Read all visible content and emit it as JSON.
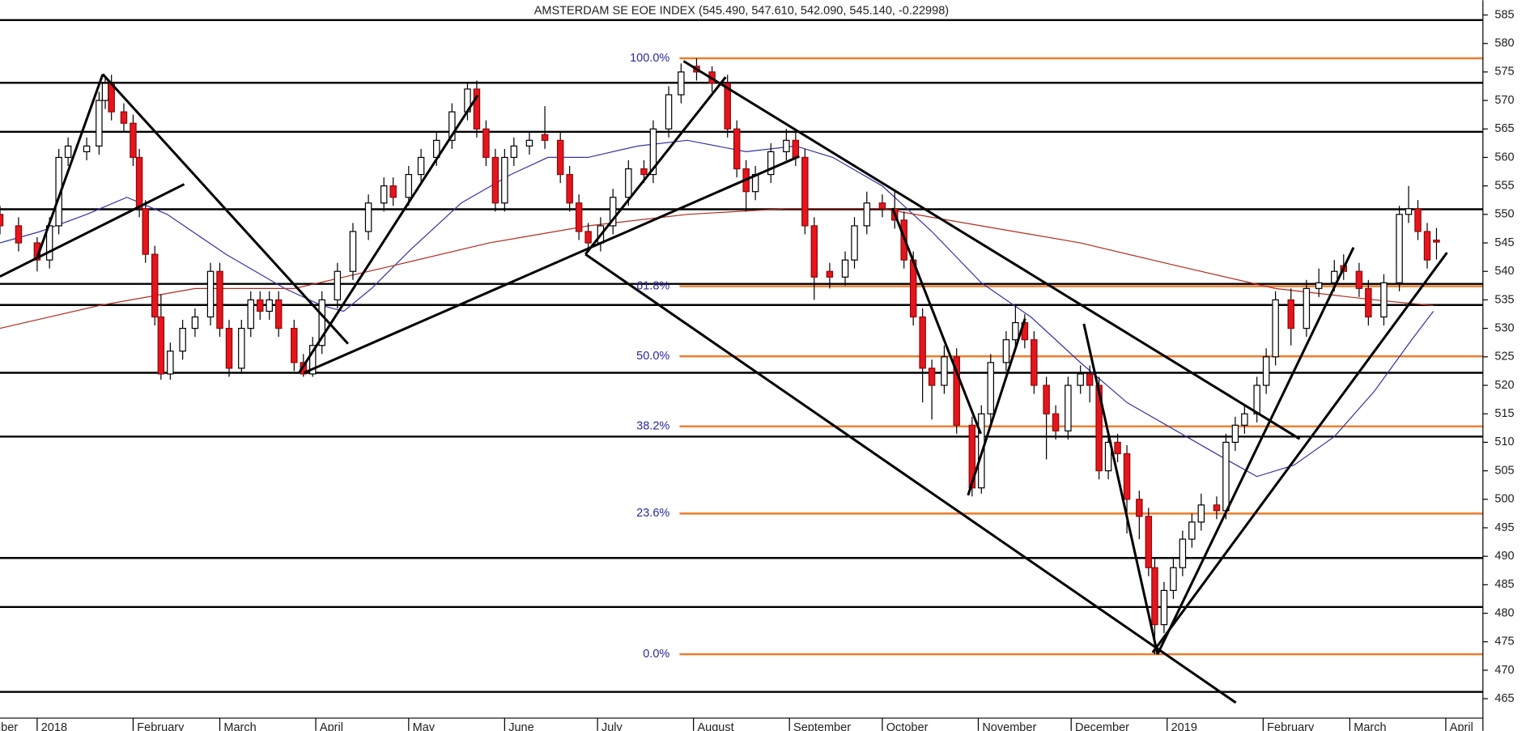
{
  "chart_data": {
    "type": "candlestick",
    "title": "AMSTERDAM SE EOE INDEX (545.490, 547.610, 542.090, 545.140, -0.22998)",
    "x": [
      -12,
      -6,
      0,
      4,
      7,
      10,
      16,
      20,
      22,
      24,
      28,
      31,
      33,
      35,
      38,
      40,
      43,
      47,
      51,
      56,
      59,
      62,
      66,
      69,
      72,
      75,
      78,
      83,
      86,
      89,
      92,
      97,
      102,
      107,
      112,
      115,
      120,
      124,
      129,
      134,
      139,
      142,
      145,
      148,
      151,
      154,
      159,
      164,
      169,
      172,
      175,
      178,
      182,
      186,
      191,
      196,
      199,
      204,
      208,
      213,
      218,
      223,
      226,
      229,
      232,
      237,
      242,
      245,
      248,
      251,
      256,
      261,
      264,
      268,
      273,
      277,
      280,
      283,
      286,
      289,
      293,
      297,
      302,
      305,
      308,
      313,
      316,
      319,
      322,
      326,
      329,
      333,
      337,
      340,
      343,
      346,
      349,
      352,
      356,
      359,
      361,
      364,
      367,
      370,
      373,
      376,
      381,
      384,
      387,
      390,
      394,
      397,
      400,
      405,
      410,
      414,
      419,
      422,
      427,
      430,
      435,
      440,
      443,
      446,
      449,
      452
    ],
    "open": [
      550,
      548,
      545,
      542,
      548,
      560,
      561,
      562,
      570,
      573,
      568,
      566,
      560,
      551,
      543,
      532,
      522,
      526,
      530,
      532,
      540,
      530,
      523,
      530,
      535,
      533,
      535,
      530,
      524,
      522,
      527,
      535,
      540,
      547,
      552,
      555,
      553,
      557,
      560,
      563,
      568,
      572,
      565,
      560,
      552,
      560,
      562,
      564,
      563,
      557,
      552,
      547,
      545,
      548,
      553,
      558,
      557,
      565,
      571,
      576,
      575,
      573,
      565,
      558,
      554,
      557,
      561,
      563,
      560,
      548,
      540,
      539,
      542,
      548,
      552,
      551,
      549,
      542,
      532,
      523,
      520,
      525,
      513,
      502,
      515,
      524,
      528,
      531,
      528,
      520,
      515,
      512,
      520,
      522,
      520,
      505,
      510,
      508,
      500,
      497,
      488,
      478,
      484,
      488,
      493,
      496,
      499,
      498,
      510,
      513,
      515,
      520,
      525,
      535,
      530,
      537,
      538,
      541,
      540,
      537,
      532,
      538,
      550,
      551,
      547,
      545.49
    ],
    "high": [
      551.5,
      549.5,
      546,
      549.5,
      561.5,
      563.5,
      563.5,
      571.5,
      574,
      574.5,
      569.5,
      567.5,
      561.5,
      552.5,
      544.5,
      536,
      527.5,
      531.5,
      533.5,
      541.5,
      541.5,
      531.5,
      531.5,
      536.5,
      536.5,
      536.5,
      536.5,
      531.5,
      525.5,
      528.5,
      536.5,
      541.5,
      548.5,
      553.5,
      556.5,
      556.5,
      558.5,
      561.5,
      564.5,
      569.5,
      573,
      573.5,
      566.5,
      561.5,
      561.5,
      563.5,
      564.5,
      569,
      564.5,
      558.5,
      553.5,
      548.5,
      549.5,
      554.5,
      559.5,
      559.5,
      566.5,
      572.5,
      576.5,
      577.4,
      576,
      574.5,
      566.5,
      559.5,
      558.5,
      562.5,
      565,
      564.5,
      561.5,
      549.5,
      541.5,
      543.5,
      549.5,
      554,
      553.5,
      554,
      550.5,
      543.5,
      533.5,
      524.5,
      527,
      526.5,
      514.5,
      516.5,
      525.5,
      529.5,
      534,
      532.5,
      529.5,
      521.5,
      516.5,
      521.5,
      523.5,
      523.5,
      521.5,
      512,
      511.5,
      509.5,
      501.5,
      498.5,
      489.5,
      485.5,
      489.5,
      494.5,
      497.5,
      501,
      500.5,
      511.5,
      514.5,
      516.5,
      521.5,
      526.5,
      536.5,
      537,
      538.5,
      540.5,
      542,
      543,
      541.5,
      538.5,
      539.5,
      551.5,
      555,
      552.5,
      548.5,
      547.61
    ],
    "low": [
      546.5,
      543.5,
      540,
      540.5,
      546.5,
      558.5,
      559.5,
      560.5,
      568.5,
      566.5,
      564.5,
      558.5,
      549.5,
      541.5,
      530.5,
      521,
      521,
      524.5,
      528.5,
      530.5,
      528.5,
      521.5,
      522,
      528.5,
      531.5,
      531.5,
      528.5,
      522.5,
      521.5,
      521.5,
      525.5,
      533.5,
      538.5,
      545.5,
      550.5,
      551.5,
      551.5,
      555.5,
      558.5,
      561.5,
      566.5,
      563.5,
      558.5,
      550.5,
      550.5,
      558.5,
      560.5,
      561.5,
      555.5,
      550.5,
      545.5,
      543.5,
      543.5,
      546.5,
      551.5,
      555.5,
      555.5,
      563.5,
      569.5,
      573.5,
      571.5,
      563.5,
      556.5,
      550.5,
      552.5,
      555.5,
      559.5,
      558.5,
      546.5,
      535,
      537,
      537.5,
      540.5,
      546.5,
      549.5,
      547.5,
      540.5,
      530.5,
      517,
      514,
      518.5,
      511.5,
      500.5,
      501,
      513.5,
      522.5,
      526.5,
      526.5,
      518.5,
      507,
      510.5,
      510.5,
      518.5,
      517,
      503.5,
      503.5,
      506.5,
      494,
      493,
      486.5,
      472.8,
      476.5,
      482.5,
      486.5,
      491.5,
      494.5,
      496.5,
      496.5,
      508.5,
      511.5,
      513.5,
      518.5,
      523.5,
      527,
      528.5,
      535.5,
      536.5,
      538.5,
      535.5,
      530.5,
      530.5,
      536.5,
      548.5,
      545.5,
      540.5,
      542.09
    ],
    "close": [
      548,
      545,
      542,
      548,
      560,
      562,
      562,
      570,
      573,
      568,
      566,
      560,
      551,
      543,
      532,
      522,
      526,
      530,
      532,
      540,
      530,
      523,
      530,
      535,
      533,
      535,
      530,
      524,
      522,
      527,
      535,
      540,
      547,
      552,
      555,
      553,
      557,
      560,
      563,
      568,
      572,
      565,
      560,
      552,
      560,
      562,
      563,
      563,
      557,
      552,
      547,
      545,
      548,
      553,
      558,
      557,
      565,
      571,
      575,
      575,
      573,
      565,
      558,
      554,
      557,
      561,
      563,
      560,
      548,
      539,
      539,
      542,
      548,
      552,
      551,
      549,
      542,
      532,
      523,
      520,
      525,
      513,
      502,
      515,
      524,
      528,
      531,
      528,
      520,
      515,
      512,
      520,
      522,
      520,
      505,
      510,
      508,
      500,
      497,
      488,
      478,
      484,
      488,
      493,
      496,
      499,
      498,
      510,
      513,
      515,
      520,
      525,
      535,
      530,
      537,
      538,
      540,
      540,
      537,
      532,
      538,
      550,
      551,
      547,
      542,
      545.14
    ],
    "up_color": "#ffffff",
    "down_color": "#e8141c",
    "xlim": [
      -12,
      467
    ],
    "ylim": [
      461.6,
      587.6
    ],
    "yticks": [
      465,
      470,
      475,
      480,
      485,
      490,
      495,
      500,
      505,
      510,
      515,
      520,
      525,
      530,
      535,
      540,
      545,
      550,
      555,
      560,
      565,
      570,
      575,
      580,
      585
    ],
    "xticks": [
      {
        "value": -25,
        "label": "December"
      },
      {
        "value": 0,
        "label": "2018"
      },
      {
        "value": 31,
        "label": "February"
      },
      {
        "value": 59,
        "label": "March"
      },
      {
        "value": 90,
        "label": "April"
      },
      {
        "value": 120,
        "label": "May"
      },
      {
        "value": 151,
        "label": "June"
      },
      {
        "value": 181,
        "label": "July"
      },
      {
        "value": 212,
        "label": "August"
      },
      {
        "value": 243,
        "label": "September"
      },
      {
        "value": 273,
        "label": "October"
      },
      {
        "value": 304,
        "label": "November"
      },
      {
        "value": 334,
        "label": "December"
      },
      {
        "value": 365,
        "label": "2019"
      },
      {
        "value": 396,
        "label": "February"
      },
      {
        "value": 424,
        "label": "March"
      },
      {
        "value": 455,
        "label": "April"
      }
    ],
    "moving_averages": [
      {
        "color": "#3434a4",
        "x": [
          -12,
          1,
          16,
          29,
          42,
          61,
          80,
          92,
          99,
          108,
          121,
          137,
          153,
          165,
          178,
          194,
          210,
          229,
          245,
          257,
          273,
          289,
          305,
          321,
          337,
          352,
          368,
          384,
          394,
          406,
          419,
          432,
          444,
          451
        ],
        "values": [
          545,
          547,
          550,
          553,
          550,
          543,
          537,
          534,
          533,
          537,
          544,
          552,
          557,
          560,
          560,
          562,
          563,
          561,
          562,
          560,
          555,
          547,
          538,
          532,
          524,
          517,
          512,
          507,
          504,
          506,
          511,
          519,
          528,
          533
        ]
      },
      {
        "color": "#b22a1e",
        "x": [
          -12,
          20,
          51,
          83,
          115,
          146,
          178,
          210,
          242,
          273,
          305,
          337,
          368,
          400,
          432,
          451
        ],
        "values": [
          530,
          534,
          537,
          537,
          541,
          545,
          548,
          550,
          551,
          551,
          548,
          545,
          541,
          537,
          535,
          534
        ]
      }
    ],
    "hlines": {
      "color": "#000000",
      "values": [
        584.1,
        573.1,
        564.5,
        550.9,
        537.8,
        534.1,
        522.2,
        511.0,
        489.7,
        481.1,
        466.2
      ]
    },
    "fib": {
      "color": "#f07a28",
      "label_color": "#2a2aa0",
      "start": 207.5,
      "levels": [
        {
          "value": 577.4,
          "label": "100.0%"
        },
        {
          "value": 537.4,
          "label": "61.8%"
        },
        {
          "value": 525.1,
          "label": "50.0%"
        },
        {
          "value": 512.8,
          "label": "38.2%"
        },
        {
          "value": 497.5,
          "label": "23.6%"
        },
        {
          "value": 472.8,
          "label": "0.0%"
        }
      ]
    },
    "trendlines": {
      "color": "#000000",
      "segments": [
        [
          -12,
          539.1,
          47.5,
          555.3
        ],
        [
          0,
          542.4,
          21.2,
          574.6
        ],
        [
          21.2,
          574.6,
          100.4,
          527.3
        ],
        [
          84.6,
          522.2,
          142.3,
          570.9
        ],
        [
          86.2,
          522.2,
          246.2,
          560.2
        ],
        [
          177.1,
          543.0,
          222.4,
          574.1
        ],
        [
          208.8,
          576.9,
          407.8,
          510.6
        ],
        [
          177.1,
          543.0,
          387.2,
          464.3
        ],
        [
          276.3,
          551.1,
          304.8,
          511.5
        ],
        [
          300.7,
          500.7,
          319.1,
          531.7
        ],
        [
          338.1,
          530.8,
          361.9,
          472.8
        ],
        [
          361.9,
          472.8,
          425.2,
          544.2
        ],
        [
          360.3,
          473.1,
          455.4,
          543.3
        ]
      ]
    }
  }
}
